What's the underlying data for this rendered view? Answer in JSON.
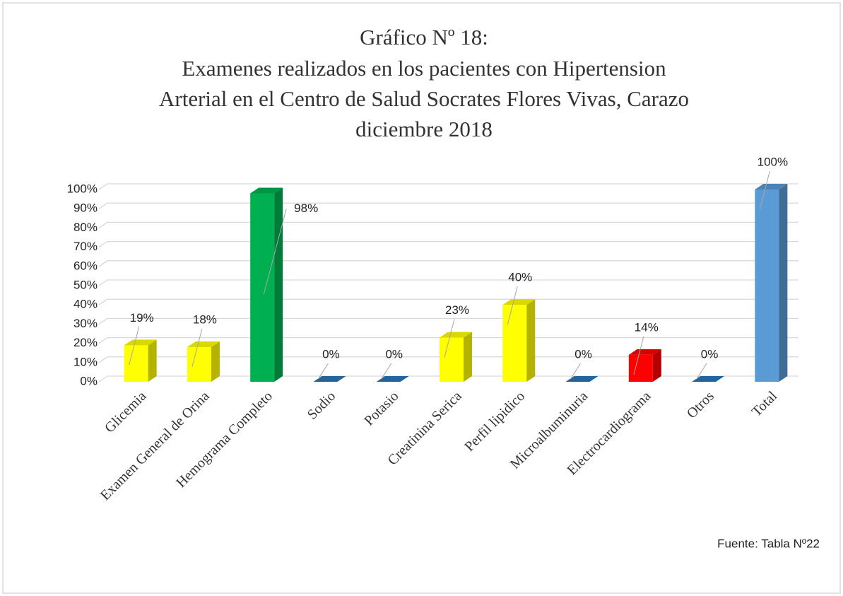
{
  "chart_data": {
    "type": "bar3d",
    "title": [
      "Gráfico Nº 18:",
      "Examenes realizados en los pacientes con Hipertension",
      "Arterial en el Centro de Salud Socrates Flores Vivas, Carazo",
      "diciembre 2018"
    ],
    "categories": [
      "Glicemia",
      "Examen General de Orina",
      "Hemograma Completo",
      "Sodio",
      "Potasio",
      "Creatinina Serica",
      "Perfil lipidico",
      "Microalbuminuria",
      "Electrocardiograma",
      "Otros",
      "Total"
    ],
    "values": [
      19,
      18,
      98,
      0,
      0,
      23,
      40,
      0,
      14,
      0,
      100
    ],
    "value_labels": [
      "19%",
      "18%",
      "98%",
      "0%",
      "0%",
      "23%",
      "40%",
      "0%",
      "14%",
      "0%",
      "100%"
    ],
    "colors": [
      "#ffff00",
      "#ffff00",
      "#00b050",
      "#2e75b6",
      "#2e75b6",
      "#ffff00",
      "#ffff00",
      "#2e75b6",
      "#ff0000",
      "#2e75b6",
      "#5b9bd5"
    ],
    "ylim": [
      0,
      100
    ],
    "yticks": [
      {
        "value": 0,
        "label": "0%"
      },
      {
        "value": 10,
        "label": "10%"
      },
      {
        "value": 20,
        "label": "20%"
      },
      {
        "value": 30,
        "label": "30%"
      },
      {
        "value": 40,
        "label": "40%"
      },
      {
        "value": 50,
        "label": "50%"
      },
      {
        "value": 60,
        "label": "60%"
      },
      {
        "value": 70,
        "label": "70%"
      },
      {
        "value": 80,
        "label": "80%"
      },
      {
        "value": 90,
        "label": "90%"
      },
      {
        "value": 100,
        "label": "100%"
      }
    ],
    "grid": true,
    "annotation": "Fuente: Tabla Nº22"
  }
}
